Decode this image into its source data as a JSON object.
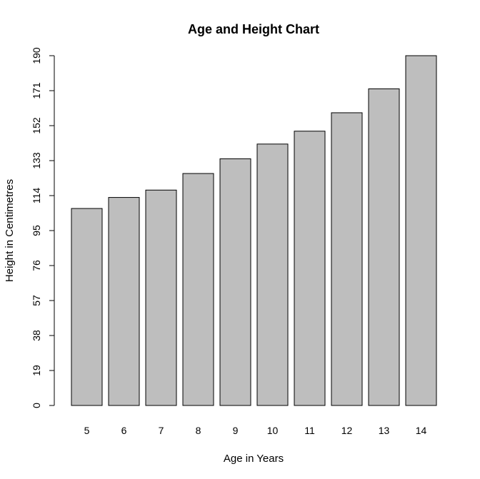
{
  "chart_data": {
    "type": "bar",
    "title": "Age and Height Chart",
    "xlabel": "Age in Years",
    "ylabel": "Height in Centimetres",
    "categories": [
      "5",
      "6",
      "7",
      "8",
      "9",
      "10",
      "11",
      "12",
      "13",
      "14"
    ],
    "values": [
      107,
      113,
      117,
      126,
      134,
      142,
      149,
      159,
      172,
      190
    ],
    "ylim": [
      0,
      190
    ],
    "yticks": [
      0,
      19,
      38,
      57,
      76,
      95,
      114,
      133,
      152,
      171,
      190
    ],
    "bar_color": "#bebebe",
    "grid": false,
    "legend": "none"
  }
}
